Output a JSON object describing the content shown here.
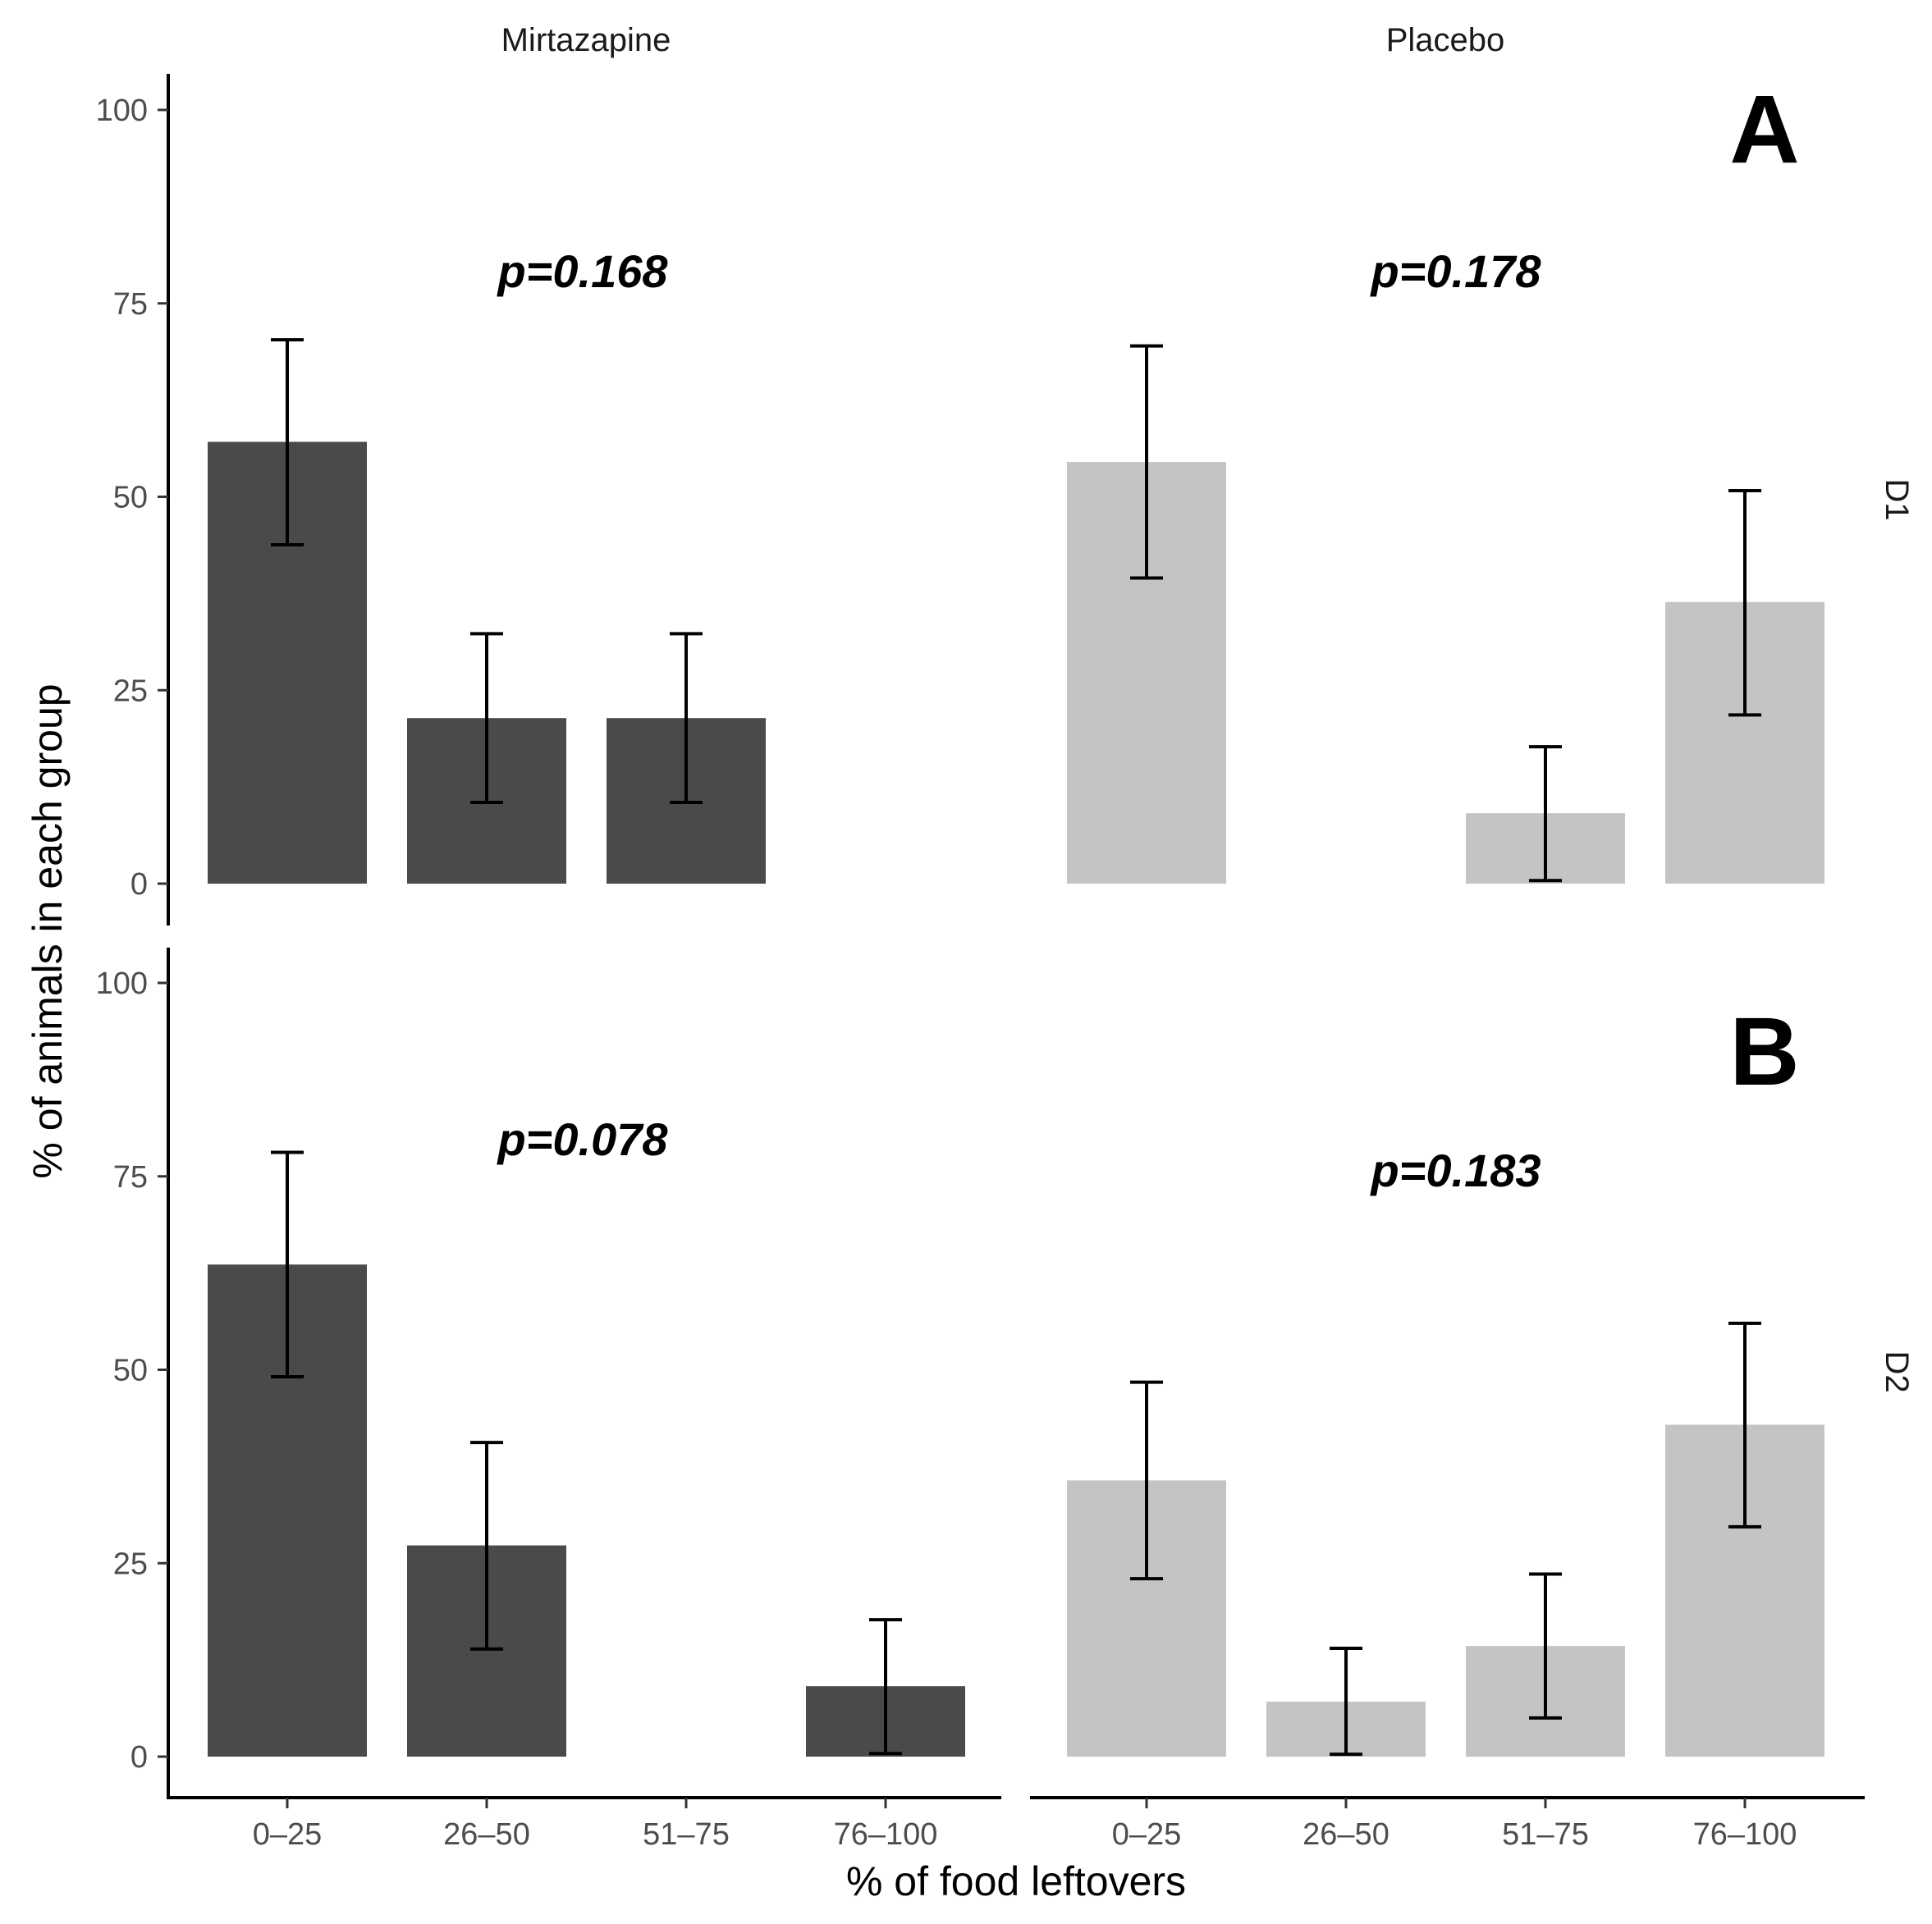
{
  "chart_data": {
    "type": "bar",
    "layout": "facet-grid",
    "xlabel": "% of food leftovers",
    "ylabel": "% of animals in each group",
    "categories": [
      "0–25",
      "26–50",
      "51–75",
      "76–100"
    ],
    "yticks": [
      0,
      25,
      50,
      75,
      100
    ],
    "ylim": [
      0,
      105
    ],
    "grid": false,
    "columns": [
      "Mirtazapine",
      "Placebo"
    ],
    "rows": [
      "D1",
      "D2"
    ],
    "colors": {
      "Mirtazapine": "#4a4a4a",
      "Placebo": "#c4c4c4",
      "errorbar": "#000000"
    },
    "panels": [
      {
        "row": "D1",
        "column": "Mirtazapine",
        "p_label": "p=0.168",
        "values": [
          57.1,
          21.4,
          21.4,
          0
        ],
        "err_low": [
          43.8,
          10.5,
          10.5,
          null
        ],
        "err_high": [
          70.3,
          32.3,
          32.3,
          null
        ]
      },
      {
        "row": "D1",
        "column": "Placebo",
        "p_label": "p=0.178",
        "letter": "A",
        "values": [
          54.5,
          0,
          9.1,
          36.4
        ],
        "err_low": [
          39.5,
          null,
          0.4,
          21.8
        ],
        "err_high": [
          69.5,
          null,
          17.7,
          50.8
        ]
      },
      {
        "row": "D2",
        "column": "Mirtazapine",
        "p_label": "p=0.078",
        "values": [
          63.6,
          27.3,
          0,
          9.1
        ],
        "err_low": [
          49.1,
          13.9,
          null,
          0.4
        ],
        "err_high": [
          78.1,
          40.6,
          null,
          17.7
        ]
      },
      {
        "row": "D2",
        "column": "Placebo",
        "p_label": "p=0.183",
        "letter": "B",
        "values": [
          35.7,
          7.1,
          14.3,
          42.9
        ],
        "err_low": [
          23.0,
          0.3,
          5.0,
          29.7
        ],
        "err_high": [
          48.4,
          14.0,
          23.6,
          56.0
        ]
      }
    ]
  }
}
